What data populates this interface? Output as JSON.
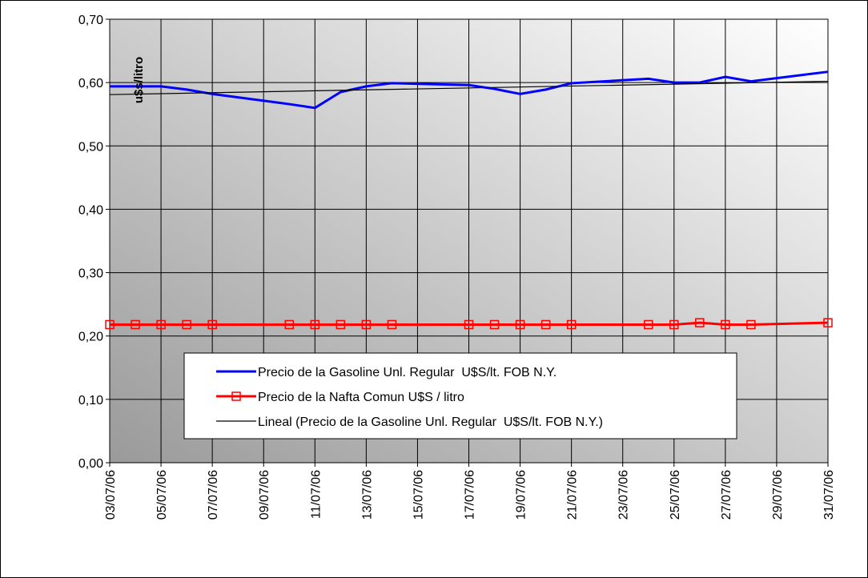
{
  "chart_data": {
    "type": "line",
    "y_label": "u$s/litro",
    "x": [
      "03/07/06",
      "04/07/06",
      "05/07/06",
      "06/07/06",
      "07/07/06",
      "10/07/06",
      "11/07/06",
      "12/07/06",
      "13/07/06",
      "14/07/06",
      "17/07/06",
      "18/07/06",
      "19/07/06",
      "20/07/06",
      "21/07/06",
      "24/07/06",
      "25/07/06",
      "26/07/06",
      "27/07/06",
      "28/07/06",
      "31/07/06"
    ],
    "xlim": [
      "03/07/06",
      "31/07/06"
    ],
    "xticks": [
      "03/07/06",
      "05/07/06",
      "07/07/06",
      "09/07/06",
      "11/07/06",
      "13/07/06",
      "15/07/06",
      "17/07/06",
      "19/07/06",
      "21/07/06",
      "23/07/06",
      "25/07/06",
      "27/07/06",
      "29/07/06",
      "31/07/06"
    ],
    "ylim": [
      0,
      0.7
    ],
    "yticks": [
      {
        "value": 0,
        "label": "0,00"
      },
      {
        "value": 0.1,
        "label": "0,10"
      },
      {
        "value": 0.2,
        "label": "0,20"
      },
      {
        "value": 0.3,
        "label": "0,30"
      },
      {
        "value": 0.4,
        "label": "0,40"
      },
      {
        "value": 0.5,
        "label": "0,50"
      },
      {
        "value": 0.6,
        "label": "0,60"
      },
      {
        "value": 0.7,
        "label": "0,70"
      }
    ],
    "grid": true,
    "series": [
      {
        "name": "Precio de la Gasoline Unl. Regular  U$S/lt. FOB N.Y.",
        "color": "#0000ff",
        "marker": "none",
        "values": [
          0.594,
          0.594,
          0.594,
          0.589,
          0.582,
          0.566,
          0.56,
          0.585,
          0.594,
          0.599,
          0.596,
          0.59,
          0.582,
          0.589,
          0.599,
          0.606,
          0.6,
          0.6,
          0.609,
          0.602,
          0.617
        ]
      },
      {
        "name": "Precio de la Nafta Comun U$S / litro",
        "color": "#ff0000",
        "marker": "square",
        "values": [
          0.218,
          0.218,
          0.218,
          0.218,
          0.218,
          0.218,
          0.218,
          0.218,
          0.218,
          0.218,
          0.218,
          0.218,
          0.218,
          0.218,
          0.218,
          0.218,
          0.218,
          0.221,
          0.218,
          0.218,
          0.221
        ]
      },
      {
        "name": "Lineal (Precio de la Gasoline Unl. Regular  U$S/lt. FOB N.Y.)",
        "color": "#000000",
        "marker": "none",
        "x": [
          "03/07/06",
          "31/07/06"
        ],
        "values": [
          0.581,
          0.602
        ]
      }
    ]
  }
}
